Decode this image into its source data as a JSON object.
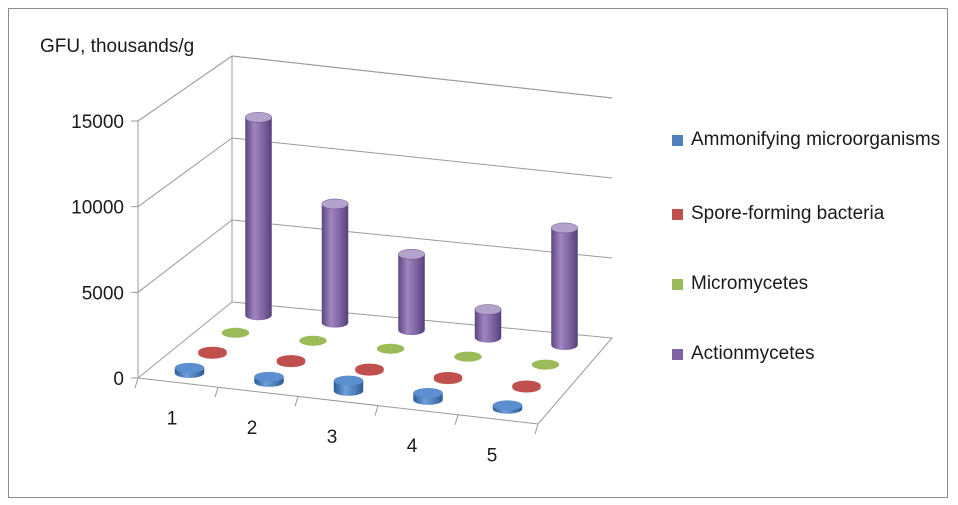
{
  "chart_data": {
    "type": "bar",
    "subtype": "3d-cylinder",
    "ylabel": "GFU, thousands/g",
    "xlabel": "",
    "ylim": [
      0,
      15000
    ],
    "yticks": [
      "0",
      "5000",
      "10000",
      "15000"
    ],
    "categories": [
      "1",
      "2",
      "3",
      "4",
      "5"
    ],
    "series": [
      {
        "name": "Ammonifying microorganisms",
        "color": "#4f81bd",
        "values": [
          300,
          300,
          600,
          400,
          200
        ]
      },
      {
        "name": "Spore-forming bacteria",
        "color": "#c0504d",
        "values": [
          120,
          120,
          120,
          120,
          120
        ]
      },
      {
        "name": "Micromycetes",
        "color": "#9bbb59",
        "values": [
          100,
          100,
          100,
          100,
          100
        ]
      },
      {
        "name": "Actionmycetes",
        "color": "#8064a2",
        "values": [
          12000,
          7200,
          4600,
          1700,
          7100
        ]
      }
    ],
    "legend": "right",
    "grid": true
  }
}
